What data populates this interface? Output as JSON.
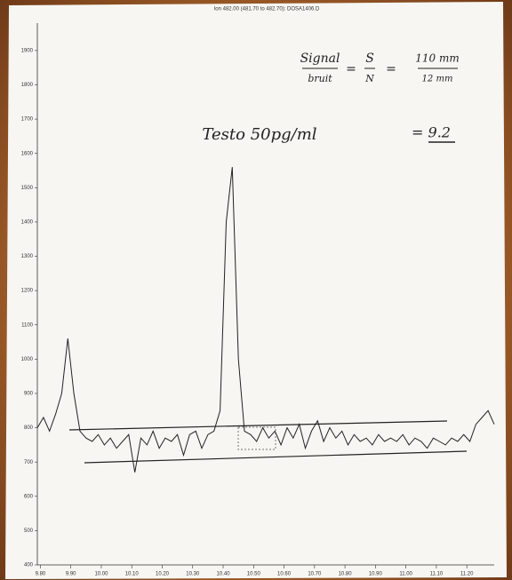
{
  "chart_data": {
    "type": "line",
    "title": "Ion 482.00 (481.70 to 482.70): DOSA1406.D",
    "x": [
      9.79,
      9.81,
      9.83,
      9.85,
      9.87,
      9.89,
      9.91,
      9.93,
      9.95,
      9.97,
      9.99,
      10.01,
      10.03,
      10.05,
      10.07,
      10.09,
      10.11,
      10.13,
      10.15,
      10.17,
      10.19,
      10.21,
      10.23,
      10.25,
      10.27,
      10.29,
      10.31,
      10.33,
      10.35,
      10.37,
      10.39,
      10.41,
      10.43,
      10.45,
      10.47,
      10.49,
      10.51,
      10.53,
      10.55,
      10.57,
      10.59,
      10.61,
      10.63,
      10.65,
      10.67,
      10.69,
      10.71,
      10.73,
      10.75,
      10.77,
      10.79,
      10.81,
      10.83,
      10.85,
      10.87,
      10.89,
      10.91,
      10.93,
      10.95,
      10.97,
      10.99,
      11.01,
      11.03,
      11.05,
      11.07,
      11.09,
      11.11,
      11.13,
      11.15,
      11.17,
      11.19,
      11.21,
      11.23,
      11.25,
      11.27,
      11.29
    ],
    "values": [
      800,
      830,
      790,
      840,
      900,
      1060,
      900,
      790,
      770,
      760,
      780,
      750,
      770,
      740,
      760,
      780,
      670,
      770,
      750,
      790,
      740,
      770,
      760,
      780,
      720,
      780,
      790,
      740,
      780,
      790,
      850,
      1400,
      1560,
      1000,
      790,
      780,
      760,
      800,
      770,
      790,
      750,
      800,
      770,
      810,
      740,
      790,
      820,
      760,
      800,
      770,
      790,
      750,
      780,
      760,
      770,
      750,
      780,
      760,
      770,
      760,
      780,
      750,
      770,
      760,
      740,
      770,
      760,
      750,
      770,
      760,
      780,
      760,
      810,
      830,
      850,
      810
    ],
    "color": "#222222",
    "xlim": [
      9.79,
      11.29
    ],
    "xticks": [
      {
        "value": 9.8,
        "label": "9.80"
      },
      {
        "value": 9.9,
        "label": "9.90"
      },
      {
        "value": 10.0,
        "label": "10.00"
      },
      {
        "value": 10.1,
        "label": "10.10"
      },
      {
        "value": 10.2,
        "label": "10.20"
      },
      {
        "value": 10.3,
        "label": "10.30"
      },
      {
        "value": 10.4,
        "label": "10.40"
      },
      {
        "value": 10.5,
        "label": "10.50"
      },
      {
        "value": 10.6,
        "label": "10.60"
      },
      {
        "value": 10.7,
        "label": "10.70"
      },
      {
        "value": 10.8,
        "label": "10.80"
      },
      {
        "value": 10.9,
        "label": "10.90"
      },
      {
        "value": 11.0,
        "label": "11.00"
      },
      {
        "value": 11.1,
        "label": "11.10"
      },
      {
        "value": 11.2,
        "label": "11.20"
      }
    ],
    "ylim": [
      400,
      1980
    ],
    "yticks": [
      400,
      500,
      600,
      700,
      800,
      900,
      1000,
      1100,
      1200,
      1300,
      1400,
      1500,
      1600,
      1700,
      1800,
      1900
    ],
    "annotations": [
      "Signal",
      "bruit",
      "=",
      "S",
      "N",
      "=",
      "110 mm",
      "12 mm",
      "Testo 50pg/ml",
      "= 9.2"
    ]
  }
}
